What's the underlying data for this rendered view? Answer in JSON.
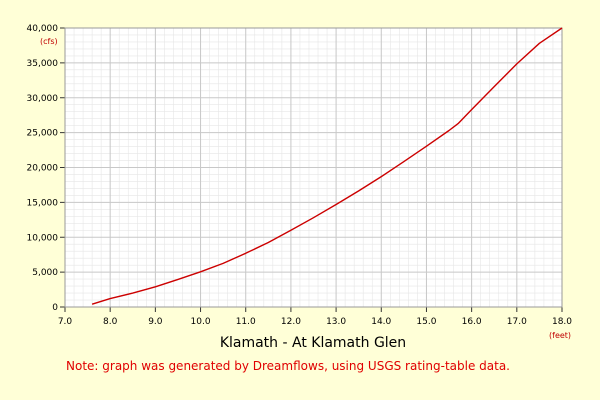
{
  "chart_data": {
    "type": "line",
    "title": "Klamath - At Klamath Glen",
    "xunit": "(feet)",
    "yunit": "(cfs)",
    "note": "Note: graph was generated by Dreamflows, using USGS rating-table data.",
    "xlim": [
      7.0,
      18.0
    ],
    "ylim": [
      0,
      40000
    ],
    "xticks": [
      7.0,
      8.0,
      9.0,
      10.0,
      11.0,
      12.0,
      13.0,
      14.0,
      15.0,
      16.0,
      17.0,
      18.0
    ],
    "xtick_labels": [
      "7.0",
      "8.0",
      "9.0",
      "10.0",
      "11.0",
      "12.0",
      "13.0",
      "14.0",
      "15.0",
      "16.0",
      "17.0",
      "18.0"
    ],
    "yticks": [
      0,
      5000,
      10000,
      15000,
      20000,
      25000,
      30000,
      35000,
      40000
    ],
    "ytick_labels": [
      "0",
      "5,000",
      "10,000",
      "15,000",
      "20,000",
      "25,000",
      "30,000",
      "35,000",
      "40,000"
    ],
    "grid": true,
    "colors": {
      "line": "#CC0000",
      "background": "#FFFFD7",
      "plot_bg": "#FFFFFF",
      "note": "#E00000"
    },
    "series": [
      {
        "x": [
          7.6,
          8.0,
          8.5,
          9.0,
          9.5,
          10.0,
          10.5,
          11.0,
          11.5,
          12.0,
          12.5,
          13.0,
          13.5,
          14.0,
          14.5,
          15.0,
          15.5,
          15.7,
          16.0,
          16.5,
          17.0,
          17.5,
          18.0
        ],
        "y": [
          400,
          1200,
          2000,
          2900,
          3950,
          5050,
          6250,
          7700,
          9250,
          11000,
          12800,
          14700,
          16650,
          18700,
          20850,
          23050,
          25300,
          26300,
          28300,
          31600,
          34850,
          37800,
          40000
        ]
      }
    ]
  }
}
